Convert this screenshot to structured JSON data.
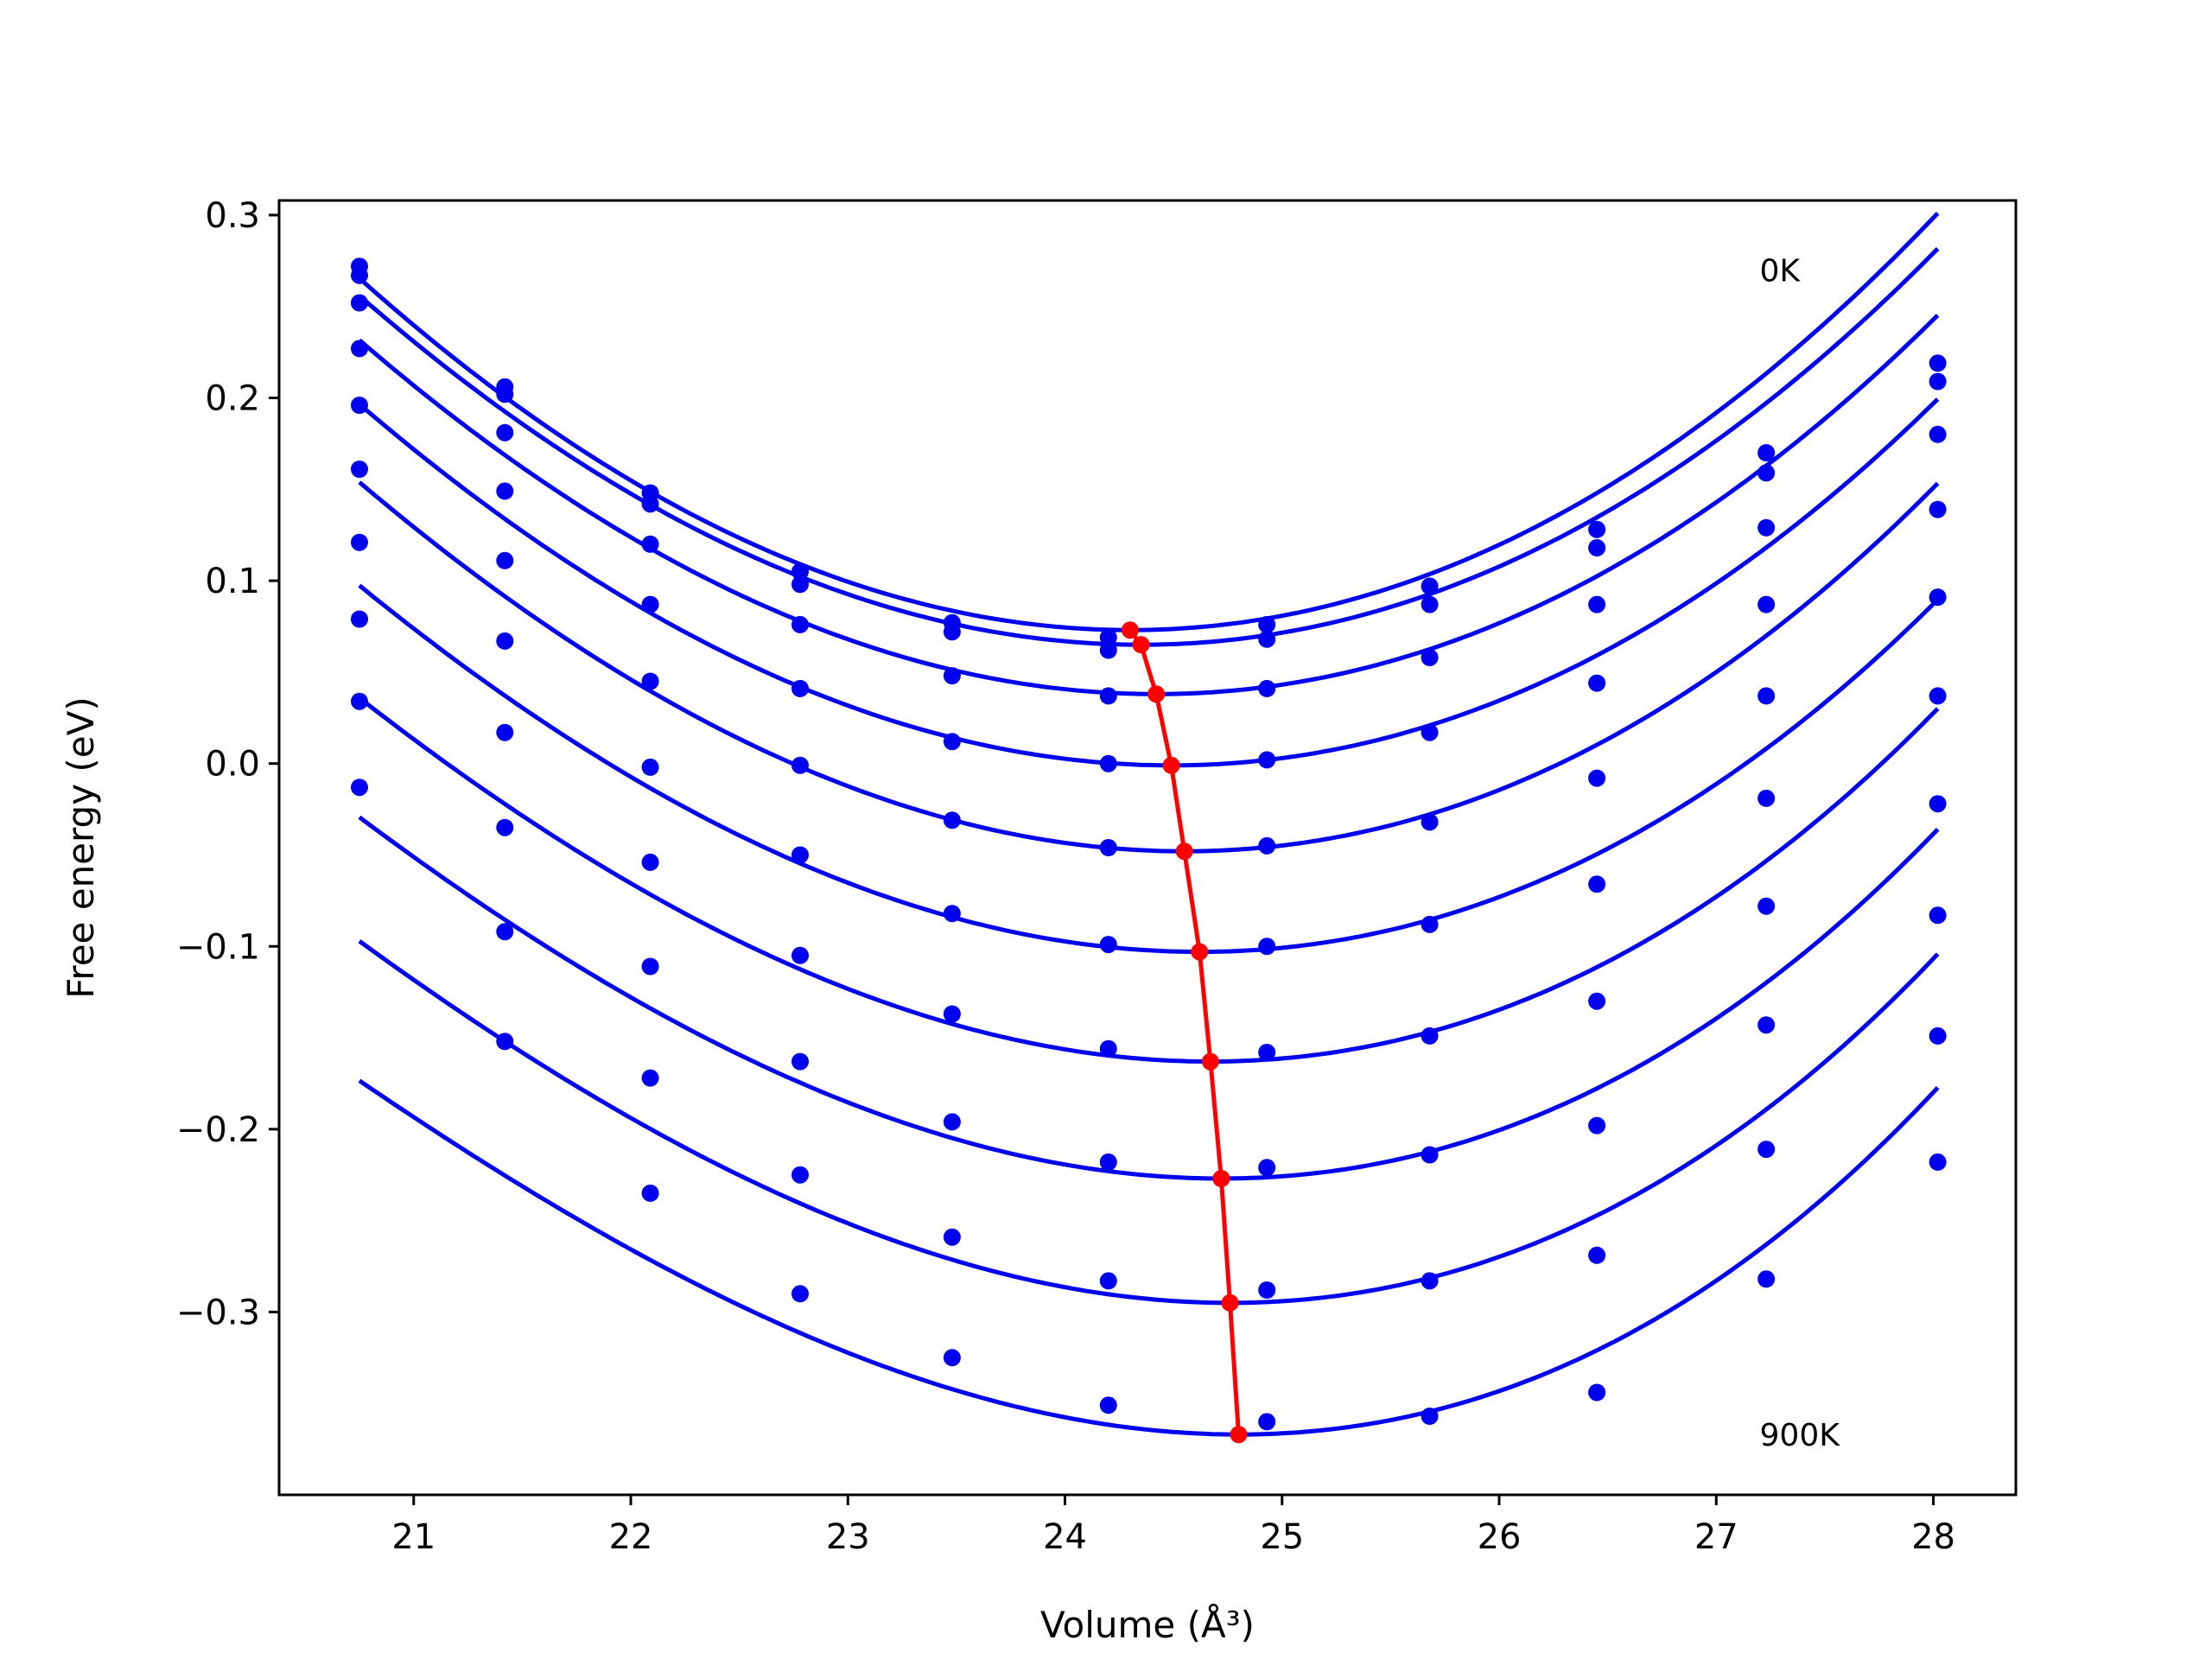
{
  "chart_data": {
    "type": "line",
    "xlabel": "Volume (Å³)",
    "ylabel": "Free energy (eV)",
    "xlim": [
      20.38,
      28.38
    ],
    "ylim": [
      -0.4,
      0.308
    ],
    "xticks": [
      21,
      22,
      23,
      24,
      25,
      26,
      27,
      28
    ],
    "xtick_labels": [
      "21",
      "22",
      "23",
      "24",
      "25",
      "26",
      "27",
      "28"
    ],
    "yticks": [
      0.3,
      0.2,
      0.1,
      0.0,
      -0.1,
      -0.2,
      -0.3
    ],
    "ytick_labels": [
      "0.3",
      "0.2",
      "0.1",
      "0.0",
      "−0.1",
      "−0.2",
      "−0.3"
    ],
    "annotations": [
      {
        "text": "0K",
        "x": 27.2,
        "y": 0.27
      },
      {
        "text": "900K",
        "x": 27.2,
        "y": -0.367
      }
    ],
    "grid": false,
    "colors": {
      "fit": "#0000ee",
      "points": "#0000ee",
      "minimum": "#ff0000"
    },
    "volumes": [
      20.75,
      21.42,
      22.09,
      22.78,
      23.48,
      24.2,
      24.93,
      25.68,
      26.45,
      27.23,
      28.02
    ],
    "series": [
      {
        "points": [
          0.272,
          0.206,
          0.148,
          0.105,
          0.077,
          0.069,
          0.076,
          0.097,
          0.128,
          0.17,
          0.219
        ],
        "fit": {
          "vmin": 24.3,
          "fmin": 0.073,
          "a": 0.01586,
          "b": 0.000166
        }
      },
      {
        "points": [
          0.267,
          0.202,
          0.142,
          0.098,
          0.072,
          0.062,
          0.068,
          0.087,
          0.118,
          0.159,
          0.209
        ],
        "fit": {
          "vmin": 24.35,
          "fmin": 0.065,
          "a": 0.0154,
          "b": 0.000186
        }
      },
      {
        "points": [
          0.252,
          0.181,
          0.12,
          0.076,
          0.048,
          0.037,
          0.041,
          0.058,
          0.087,
          0.129,
          0.18
        ],
        "fit": {
          "vmin": 24.42,
          "fmin": 0.038,
          "a": 0.01519,
          "b": 0.000222
        }
      },
      {
        "points": [
          0.227,
          0.149,
          0.087,
          0.041,
          0.012,
          0.0,
          0.002,
          0.017,
          0.044,
          0.087,
          0.139
        ],
        "fit": {
          "vmin": 24.49,
          "fmin": -0.001,
          "a": 0.01513,
          "b": 0.000269
        }
      },
      {
        "points": [
          0.196,
          0.111,
          0.045,
          -0.001,
          -0.031,
          -0.046,
          -0.045,
          -0.032,
          -0.008,
          0.037,
          0.091
        ],
        "fit": {
          "vmin": 24.55,
          "fmin": -0.048,
          "a": 0.01541,
          "b": 0.000376
        }
      },
      {
        "points": [
          0.161,
          0.067,
          -0.002,
          -0.05,
          -0.082,
          -0.099,
          -0.1,
          -0.088,
          -0.066,
          -0.019,
          0.037
        ],
        "fit": {
          "vmin": 24.62,
          "fmin": -0.103,
          "a": 0.01513,
          "b": 0.000452
        }
      },
      {
        "points": [
          0.121,
          0.017,
          -0.054,
          -0.105,
          -0.137,
          -0.156,
          -0.158,
          -0.149,
          -0.13,
          -0.078,
          -0.022
        ],
        "fit": {
          "vmin": 24.67,
          "fmin": -0.163,
          "a": 0.01524,
          "b": 0.000586
        }
      },
      {
        "points": [
          0.079,
          -0.035,
          -0.111,
          -0.163,
          -0.196,
          -0.218,
          -0.221,
          -0.214,
          -0.198,
          -0.143,
          -0.083
        ],
        "fit": {
          "vmin": 24.72,
          "fmin": -0.227,
          "a": 0.01527,
          "b": 0.000688
        }
      },
      {
        "points": [
          0.034,
          -0.092,
          -0.172,
          -0.225,
          -0.259,
          -0.283,
          -0.288,
          -0.283,
          -0.269,
          -0.211,
          -0.149
        ],
        "fit": {
          "vmin": 24.76,
          "fmin": -0.295,
          "a": 0.01542,
          "b": 0.000777
        }
      },
      {
        "points": [
          -0.013,
          -0.152,
          -0.235,
          -0.29,
          -0.325,
          -0.351,
          -0.36,
          -0.357,
          -0.344,
          -0.282,
          -0.218
        ],
        "fit": {
          "vmin": 24.8,
          "fmin": -0.367,
          "a": 0.01542,
          "b": 0.000894
        }
      }
    ],
    "minimum_curve": {
      "x": [
        24.3,
        24.35,
        24.42,
        24.49,
        24.55,
        24.62,
        24.67,
        24.72,
        24.76,
        24.8
      ],
      "y": [
        0.073,
        0.065,
        0.038,
        -0.001,
        -0.048,
        -0.103,
        -0.163,
        -0.227,
        -0.295,
        -0.367
      ]
    }
  }
}
